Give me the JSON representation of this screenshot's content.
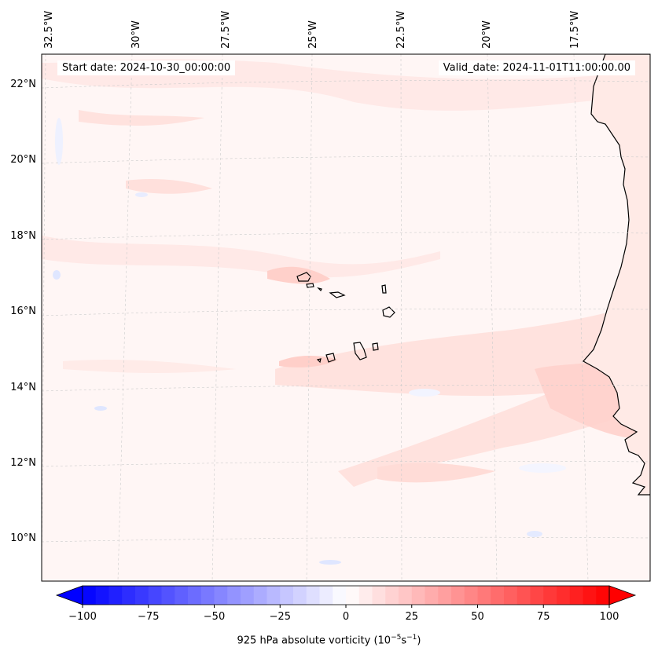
{
  "map": {
    "start_date_label": "Start date: 2024-10-30_00:00:00",
    "valid_date_label": "Valid_date: 2024-11-01T11:00:00.00",
    "lon_labels": [
      "32.5°W",
      "30°W",
      "27.5°W",
      "25°W",
      "22.5°W",
      "20°W",
      "17.5°W"
    ],
    "lat_labels": [
      "22°N",
      "20°N",
      "18°N",
      "16°N",
      "14°N",
      "12°N",
      "10°N"
    ],
    "field_colors": {
      "positive": "#ffb3b3",
      "negative": "#b3c6ff",
      "land_line": "#000000"
    }
  },
  "colorbar": {
    "title": "925 hPa absolute vorticity (10",
    "title_sup1": "−5",
    "title_mid": "s",
    "title_sup2": "−1",
    "title_end": ")",
    "ticks": [
      "−100",
      "−75",
      "−50",
      "−25",
      "0",
      "25",
      "50",
      "75",
      "100"
    ],
    "range": [
      -100,
      100
    ],
    "cmap": [
      "#0000ff",
      "#ffffff",
      "#ff0000"
    ]
  }
}
